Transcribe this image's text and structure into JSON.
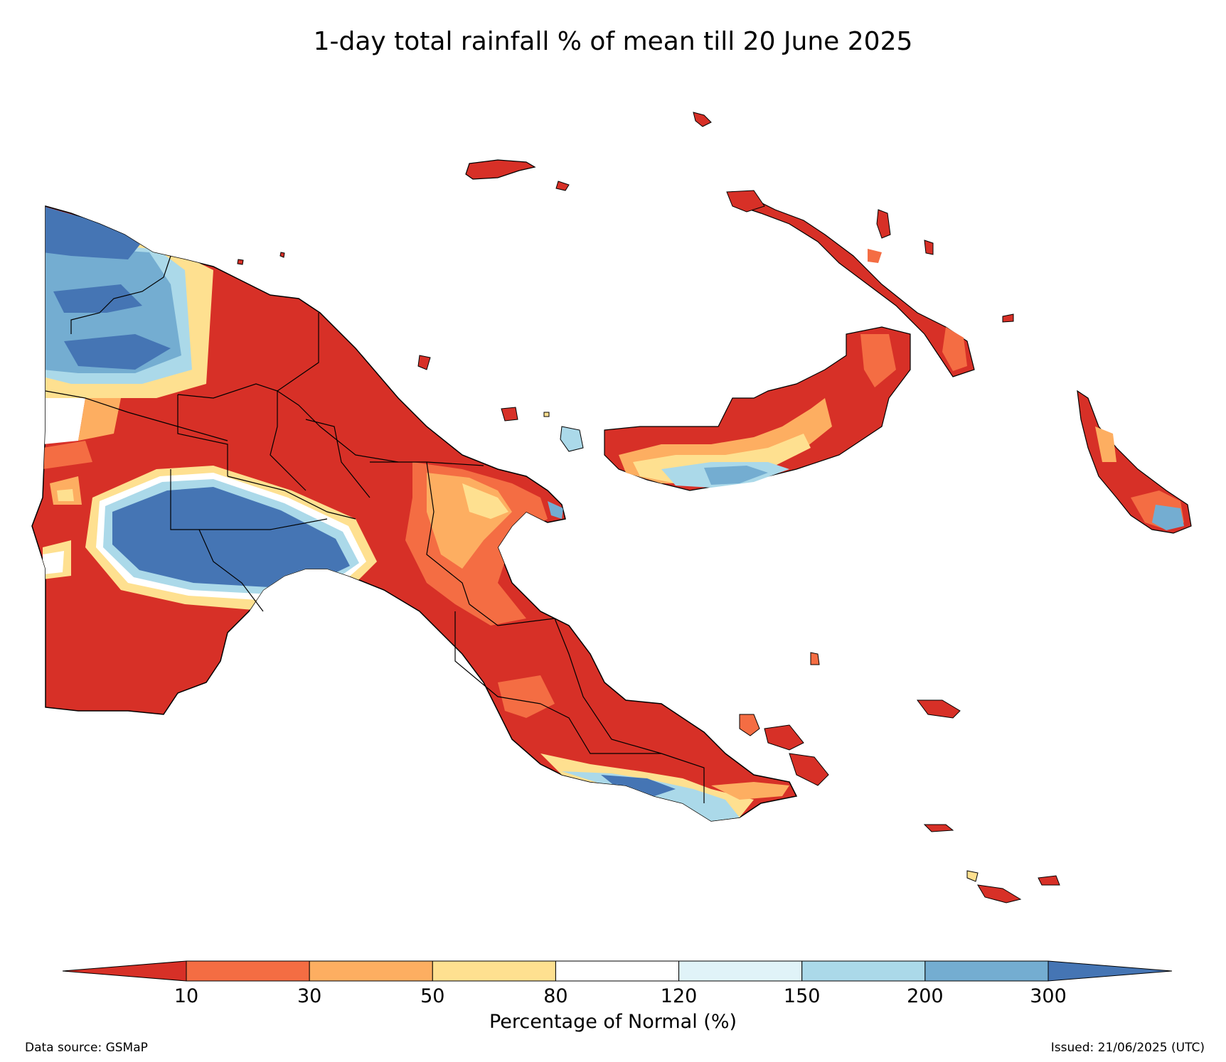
{
  "title": "1-day total rainfall % of mean till 20 June 2025",
  "colorbar": {
    "label": "Percentage of Normal (%)",
    "ticks": [
      "10",
      "30",
      "50",
      "80",
      "120",
      "150",
      "200",
      "300"
    ],
    "colors": [
      "#d73027",
      "#f46d43",
      "#fdae61",
      "#fee090",
      "#ffffff",
      "#e0f3f8",
      "#abd9e9",
      "#74add1",
      "#4575b4"
    ],
    "extend": "both"
  },
  "footer": {
    "source": "Data source: GSMaP",
    "issued": "Issued: 21/06/2025 (UTC)"
  }
}
